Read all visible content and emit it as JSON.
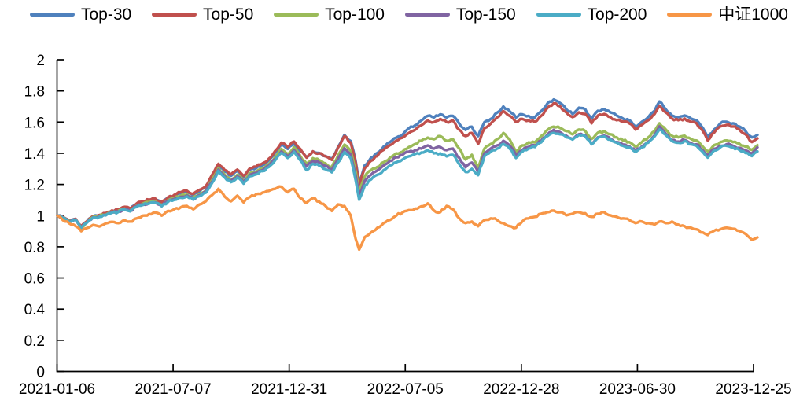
{
  "chart_data": {
    "type": "line",
    "title": "",
    "grid": false,
    "legend_position": "top",
    "x_axis": {
      "tick_labels": [
        "2021-01-06",
        "2021-07-07",
        "2021-12-31",
        "2022-07-05",
        "2022-12-28",
        "2023-06-30",
        "2023-12-25"
      ]
    },
    "y_axis": {
      "range": [
        0,
        2
      ],
      "ticks": [
        2,
        1.8,
        1.6,
        1.4,
        1.2,
        1,
        0.8,
        0.6,
        0.4,
        0.2,
        0
      ],
      "tick_labels": [
        "2",
        "1.8",
        "1.6",
        "1.4",
        "1.2",
        "1",
        "0.8",
        "0.6",
        "0.4",
        "0.2",
        "0"
      ]
    },
    "x": [
      0.0,
      0.008,
      0.017,
      0.026,
      0.034,
      0.042,
      0.051,
      0.06,
      0.069,
      0.078,
      0.087,
      0.096,
      0.104,
      0.113,
      0.122,
      0.131,
      0.14,
      0.149,
      0.158,
      0.167,
      0.176,
      0.185,
      0.194,
      0.203,
      0.212,
      0.221,
      0.23,
      0.239,
      0.248,
      0.257,
      0.266,
      0.275,
      0.284,
      0.293,
      0.302,
      0.311,
      0.32,
      0.329,
      0.338,
      0.347,
      0.356,
      0.365,
      0.374,
      0.383,
      0.392,
      0.401,
      0.41,
      0.419,
      0.426,
      0.431,
      0.439,
      0.448,
      0.457,
      0.466,
      0.475,
      0.484,
      0.493,
      0.502,
      0.511,
      0.52,
      0.529,
      0.538,
      0.547,
      0.556,
      0.565,
      0.574,
      0.583,
      0.592,
      0.601,
      0.61,
      0.619,
      0.628,
      0.637,
      0.646,
      0.655,
      0.664,
      0.673,
      0.682,
      0.691,
      0.7,
      0.709,
      0.718,
      0.727,
      0.736,
      0.745,
      0.754,
      0.763,
      0.772,
      0.781,
      0.79,
      0.799,
      0.808,
      0.817,
      0.826,
      0.835,
      0.844,
      0.853,
      0.86,
      0.869,
      0.878,
      0.887,
      0.896,
      0.905,
      0.913,
      0.922,
      0.929,
      0.938,
      0.947,
      0.956,
      0.965,
      0.974,
      0.983,
      0.992,
      1.0
    ],
    "series": [
      {
        "name": "Top-30",
        "color": "#4F81BD",
        "values": [
          1.0,
          0.99,
          0.965,
          0.978,
          0.93,
          0.962,
          0.996,
          1.002,
          1.012,
          1.03,
          1.036,
          1.052,
          1.042,
          1.072,
          1.087,
          1.097,
          1.102,
          1.082,
          1.112,
          1.127,
          1.142,
          1.152,
          1.132,
          1.157,
          1.182,
          1.252,
          1.322,
          1.282,
          1.255,
          1.285,
          1.245,
          1.295,
          1.305,
          1.325,
          1.355,
          1.405,
          1.455,
          1.428,
          1.462,
          1.415,
          1.375,
          1.412,
          1.402,
          1.382,
          1.362,
          1.442,
          1.518,
          1.478,
          1.352,
          1.212,
          1.322,
          1.372,
          1.402,
          1.442,
          1.472,
          1.5,
          1.52,
          1.56,
          1.58,
          1.61,
          1.64,
          1.63,
          1.65,
          1.63,
          1.64,
          1.59,
          1.55,
          1.57,
          1.51,
          1.6,
          1.62,
          1.66,
          1.7,
          1.67,
          1.63,
          1.65,
          1.64,
          1.63,
          1.67,
          1.72,
          1.745,
          1.722,
          1.682,
          1.652,
          1.692,
          1.682,
          1.622,
          1.672,
          1.682,
          1.662,
          1.642,
          1.622,
          1.612,
          1.572,
          1.602,
          1.632,
          1.672,
          1.732,
          1.682,
          1.642,
          1.632,
          1.642,
          1.622,
          1.612,
          1.562,
          1.502,
          1.552,
          1.592,
          1.602,
          1.592,
          1.572,
          1.542,
          1.502,
          1.518
        ]
      },
      {
        "name": "Top-50",
        "color": "#C0504D",
        "values": [
          1.0,
          0.99,
          0.966,
          0.979,
          0.932,
          0.963,
          0.997,
          1.004,
          1.015,
          1.033,
          1.04,
          1.056,
          1.046,
          1.077,
          1.092,
          1.102,
          1.108,
          1.088,
          1.118,
          1.133,
          1.149,
          1.159,
          1.139,
          1.165,
          1.19,
          1.262,
          1.332,
          1.292,
          1.265,
          1.295,
          1.255,
          1.305,
          1.315,
          1.335,
          1.365,
          1.415,
          1.468,
          1.44,
          1.475,
          1.428,
          1.372,
          1.412,
          1.4,
          1.38,
          1.358,
          1.438,
          1.51,
          1.468,
          1.34,
          1.192,
          1.305,
          1.352,
          1.382,
          1.422,
          1.452,
          1.48,
          1.5,
          1.53,
          1.55,
          1.58,
          1.61,
          1.6,
          1.62,
          1.6,
          1.61,
          1.55,
          1.51,
          1.53,
          1.46,
          1.56,
          1.59,
          1.63,
          1.67,
          1.64,
          1.6,
          1.62,
          1.61,
          1.6,
          1.64,
          1.69,
          1.72,
          1.702,
          1.662,
          1.632,
          1.662,
          1.652,
          1.592,
          1.642,
          1.652,
          1.632,
          1.612,
          1.602,
          1.592,
          1.552,
          1.582,
          1.612,
          1.652,
          1.705,
          1.662,
          1.622,
          1.612,
          1.622,
          1.602,
          1.592,
          1.542,
          1.482,
          1.532,
          1.572,
          1.582,
          1.572,
          1.552,
          1.522,
          1.472,
          1.495
        ]
      },
      {
        "name": "Top-100",
        "color": "#9BBB59",
        "values": [
          1.0,
          0.988,
          0.963,
          0.975,
          0.925,
          0.958,
          0.991,
          0.997,
          1.007,
          1.024,
          1.03,
          1.045,
          1.034,
          1.063,
          1.077,
          1.086,
          1.09,
          1.07,
          1.098,
          1.112,
          1.126,
          1.135,
          1.114,
          1.138,
          1.161,
          1.227,
          1.305,
          1.262,
          1.232,
          1.262,
          1.222,
          1.272,
          1.282,
          1.302,
          1.33,
          1.375,
          1.428,
          1.395,
          1.438,
          1.382,
          1.332,
          1.368,
          1.355,
          1.335,
          1.312,
          1.385,
          1.455,
          1.415,
          1.285,
          1.162,
          1.252,
          1.292,
          1.312,
          1.342,
          1.372,
          1.4,
          1.41,
          1.44,
          1.46,
          1.48,
          1.5,
          1.49,
          1.51,
          1.48,
          1.49,
          1.43,
          1.36,
          1.39,
          1.31,
          1.43,
          1.46,
          1.49,
          1.53,
          1.49,
          1.41,
          1.45,
          1.47,
          1.47,
          1.51,
          1.55,
          1.57,
          1.562,
          1.542,
          1.522,
          1.552,
          1.542,
          1.492,
          1.532,
          1.542,
          1.522,
          1.502,
          1.482,
          1.472,
          1.442,
          1.472,
          1.502,
          1.542,
          1.592,
          1.552,
          1.512,
          1.502,
          1.512,
          1.492,
          1.482,
          1.442,
          1.412,
          1.452,
          1.472,
          1.482,
          1.472,
          1.462,
          1.442,
          1.422,
          1.452
        ]
      },
      {
        "name": "Top-150",
        "color": "#8064A2",
        "values": [
          1.0,
          0.987,
          0.962,
          0.974,
          0.922,
          0.956,
          0.989,
          0.994,
          1.004,
          1.021,
          1.026,
          1.041,
          1.03,
          1.059,
          1.072,
          1.081,
          1.085,
          1.065,
          1.093,
          1.106,
          1.12,
          1.129,
          1.108,
          1.131,
          1.154,
          1.218,
          1.295,
          1.252,
          1.222,
          1.252,
          1.212,
          1.262,
          1.272,
          1.292,
          1.32,
          1.362,
          1.412,
          1.38,
          1.42,
          1.366,
          1.316,
          1.352,
          1.34,
          1.318,
          1.295,
          1.365,
          1.432,
          1.392,
          1.258,
          1.132,
          1.222,
          1.262,
          1.29,
          1.322,
          1.352,
          1.375,
          1.39,
          1.41,
          1.42,
          1.43,
          1.45,
          1.43,
          1.44,
          1.42,
          1.43,
          1.37,
          1.31,
          1.34,
          1.28,
          1.4,
          1.43,
          1.45,
          1.48,
          1.45,
          1.39,
          1.42,
          1.44,
          1.45,
          1.48,
          1.52,
          1.55,
          1.535,
          1.512,
          1.492,
          1.522,
          1.515,
          1.462,
          1.502,
          1.512,
          1.492,
          1.472,
          1.455,
          1.445,
          1.415,
          1.445,
          1.475,
          1.515,
          1.572,
          1.525,
          1.485,
          1.475,
          1.485,
          1.465,
          1.458,
          1.418,
          1.388,
          1.428,
          1.448,
          1.458,
          1.448,
          1.435,
          1.418,
          1.398,
          1.438
        ]
      },
      {
        "name": "Top-200",
        "color": "#4BACC6",
        "values": [
          1.0,
          0.986,
          0.96,
          0.972,
          0.92,
          0.954,
          0.987,
          0.992,
          1.002,
          1.018,
          1.023,
          1.038,
          1.027,
          1.055,
          1.068,
          1.077,
          1.081,
          1.06,
          1.088,
          1.101,
          1.114,
          1.123,
          1.102,
          1.125,
          1.147,
          1.21,
          1.288,
          1.245,
          1.215,
          1.245,
          1.205,
          1.255,
          1.265,
          1.285,
          1.312,
          1.355,
          1.402,
          1.37,
          1.41,
          1.355,
          1.292,
          1.332,
          1.32,
          1.298,
          1.278,
          1.342,
          1.408,
          1.368,
          1.228,
          1.102,
          1.192,
          1.232,
          1.262,
          1.292,
          1.322,
          1.342,
          1.36,
          1.38,
          1.395,
          1.405,
          1.42,
          1.4,
          1.4,
          1.38,
          1.39,
          1.33,
          1.28,
          1.3,
          1.26,
          1.38,
          1.41,
          1.43,
          1.46,
          1.43,
          1.37,
          1.41,
          1.43,
          1.44,
          1.47,
          1.51,
          1.53,
          1.522,
          1.502,
          1.488,
          1.518,
          1.508,
          1.458,
          1.498,
          1.508,
          1.488,
          1.468,
          1.448,
          1.438,
          1.408,
          1.438,
          1.468,
          1.508,
          1.552,
          1.518,
          1.478,
          1.468,
          1.478,
          1.458,
          1.448,
          1.408,
          1.372,
          1.418,
          1.438,
          1.448,
          1.438,
          1.422,
          1.402,
          1.382,
          1.412
        ]
      },
      {
        "name": "中证1000",
        "color": "#F79646",
        "values": [
          1.0,
          0.97,
          0.95,
          0.932,
          0.9,
          0.92,
          0.94,
          0.93,
          0.95,
          0.96,
          0.952,
          0.97,
          0.962,
          0.982,
          1.0,
          1.01,
          1.02,
          1.0,
          1.03,
          1.042,
          1.052,
          1.062,
          1.04,
          1.072,
          1.092,
          1.132,
          1.172,
          1.122,
          1.092,
          1.128,
          1.085,
          1.12,
          1.138,
          1.148,
          1.158,
          1.172,
          1.185,
          1.15,
          1.172,
          1.112,
          1.082,
          1.112,
          1.09,
          1.062,
          1.03,
          1.072,
          1.062,
          1.002,
          0.852,
          0.782,
          0.862,
          0.892,
          0.922,
          0.952,
          0.972,
          1.0,
          1.02,
          1.035,
          1.045,
          1.06,
          1.078,
          1.032,
          1.022,
          1.062,
          1.042,
          0.982,
          0.952,
          0.962,
          0.932,
          0.972,
          0.982,
          0.972,
          0.952,
          0.932,
          0.922,
          0.962,
          0.982,
          0.992,
          1.012,
          1.022,
          1.032,
          1.022,
          1.002,
          1.012,
          1.022,
          1.015,
          0.992,
          1.012,
          1.022,
          1.002,
          0.992,
          0.982,
          0.972,
          0.952,
          0.962,
          0.952,
          0.942,
          0.962,
          0.952,
          0.962,
          0.942,
          0.932,
          0.922,
          0.912,
          0.892,
          0.875,
          0.902,
          0.912,
          0.922,
          0.915,
          0.902,
          0.882,
          0.845,
          0.86
        ]
      }
    ]
  }
}
